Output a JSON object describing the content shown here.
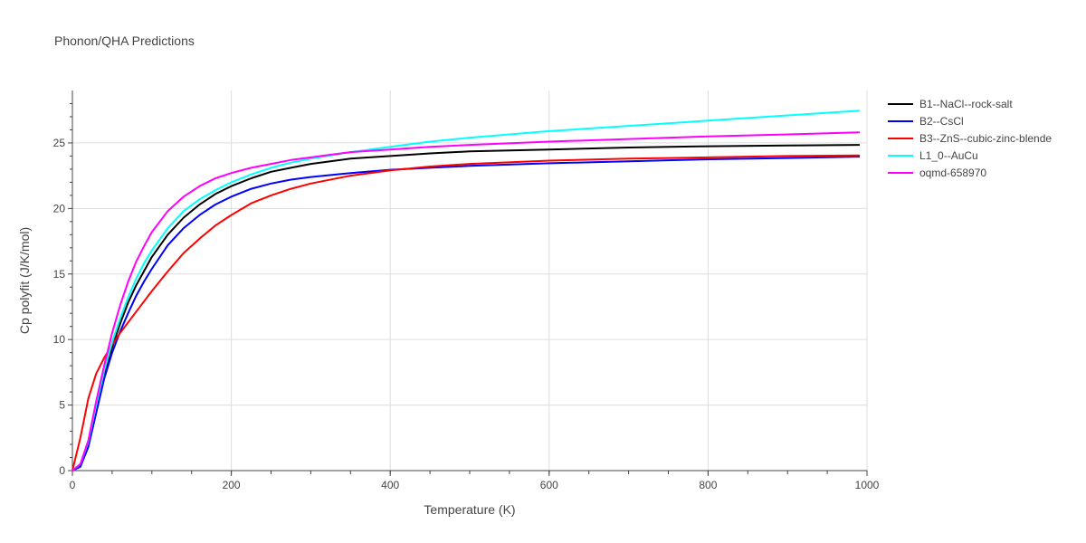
{
  "chart_data": {
    "type": "line",
    "title": "Phonon/QHA Predictions",
    "xlabel": "Temperature (K)",
    "ylabel": "Cp polyfit (J/K/mol)",
    "xlim": [
      0,
      1000
    ],
    "ylim": [
      0,
      29
    ],
    "xticks": [
      0,
      200,
      400,
      600,
      800,
      1000
    ],
    "yticks": [
      0,
      5,
      10,
      15,
      20,
      25
    ],
    "grid": true,
    "legend_position": "top-right",
    "x": [
      0,
      10,
      20,
      30,
      40,
      50,
      60,
      70,
      80,
      90,
      100,
      120,
      140,
      160,
      180,
      200,
      225,
      250,
      275,
      300,
      350,
      400,
      450,
      500,
      600,
      700,
      800,
      900,
      990
    ],
    "series": [
      {
        "name": "B1--NaCl--rock-salt",
        "color": "#000000",
        "values": [
          0,
          0.4,
          2.0,
          4.6,
          7.2,
          9.4,
          11.2,
          12.8,
          14.1,
          15.2,
          16.3,
          18.0,
          19.3,
          20.3,
          21.1,
          21.7,
          22.3,
          22.8,
          23.1,
          23.4,
          23.8,
          24.0,
          24.2,
          24.35,
          24.5,
          24.65,
          24.75,
          24.8,
          24.85
        ]
      },
      {
        "name": "B2--CsCl",
        "color": "#0000ff",
        "values": [
          0,
          0.3,
          1.8,
          4.4,
          7.0,
          9.0,
          10.6,
          12.0,
          13.3,
          14.4,
          15.4,
          17.2,
          18.5,
          19.5,
          20.3,
          20.9,
          21.5,
          21.9,
          22.2,
          22.4,
          22.7,
          22.95,
          23.1,
          23.25,
          23.45,
          23.6,
          23.75,
          23.85,
          23.95
        ]
      },
      {
        "name": "B3--ZnS--cubic-zinc-blende",
        "color": "#ff0000",
        "values": [
          0,
          2.5,
          5.5,
          7.4,
          8.6,
          9.6,
          10.5,
          11.3,
          12.1,
          12.9,
          13.7,
          15.2,
          16.6,
          17.7,
          18.7,
          19.5,
          20.4,
          21.0,
          21.5,
          21.9,
          22.5,
          22.9,
          23.2,
          23.4,
          23.65,
          23.8,
          23.9,
          24.0,
          24.05
        ]
      },
      {
        "name": "L1_0--AuCu",
        "color": "#00ffff",
        "values": [
          0,
          0.5,
          2.2,
          5.0,
          7.6,
          9.8,
          11.6,
          13.2,
          14.6,
          15.8,
          16.8,
          18.5,
          19.8,
          20.7,
          21.4,
          22.0,
          22.6,
          23.1,
          23.5,
          23.8,
          24.3,
          24.7,
          25.1,
          25.4,
          25.9,
          26.3,
          26.7,
          27.1,
          27.45
        ]
      },
      {
        "name": "oqmd-658970",
        "color": "#ff00ff",
        "values": [
          0,
          0.5,
          2.3,
          5.3,
          8.0,
          10.5,
          12.6,
          14.4,
          15.9,
          17.1,
          18.2,
          19.8,
          20.9,
          21.7,
          22.3,
          22.7,
          23.1,
          23.4,
          23.7,
          23.9,
          24.3,
          24.5,
          24.7,
          24.85,
          25.1,
          25.3,
          25.5,
          25.65,
          25.8
        ]
      }
    ]
  }
}
